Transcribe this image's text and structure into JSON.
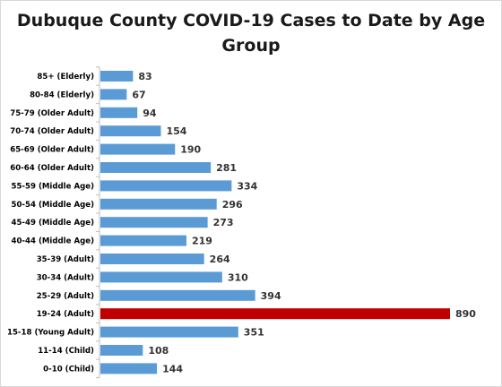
{
  "chart_data": {
    "type": "bar",
    "orientation": "horizontal",
    "title": "Dubuque County COVID-19 Cases to Date by Age Group",
    "xlabel": "",
    "ylabel": "",
    "grid": false,
    "legend": "none",
    "xlim": [
      0,
      890
    ],
    "categories": [
      "85+ (Elderly)",
      "80-84 (Elderly)",
      "75-79 (Older Adult)",
      "70-74 (Older Adult)",
      "65-69 (Older Adult)",
      "60-64 (Older Adult)",
      "55-59 (Middle Age)",
      "50-54 (Middle Age)",
      "45-49 (Middle Age)",
      "40-44 (Middle Age)",
      "35-39 (Adult)",
      "30-34 (Adult)",
      "25-29 (Adult)",
      "19-24 (Adult)",
      "15-18 (Young Adult)",
      "11-14 (Child)",
      "0-10 (Child)"
    ],
    "values": [
      83,
      67,
      94,
      154,
      190,
      281,
      334,
      296,
      273,
      219,
      264,
      310,
      394,
      890,
      351,
      108,
      144
    ],
    "colors": {
      "default": "#5b9bd5",
      "highlight": "#c00000"
    },
    "highlight_category": "19-24 (Adult)"
  }
}
